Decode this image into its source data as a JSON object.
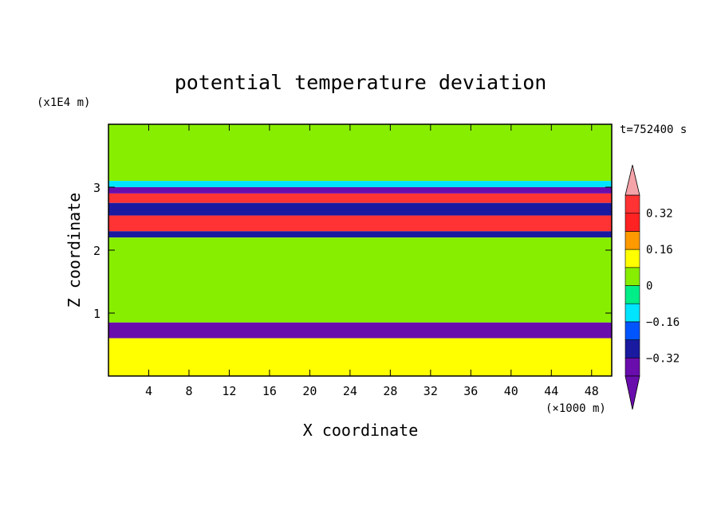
{
  "chart_data": {
    "type": "heatmap",
    "title": "potential temperature deviation",
    "xlabel": "X coordinate",
    "ylabel": "Z coordinate",
    "x_unit": "(×1000 m)",
    "y_unit": "(x1E4 m)",
    "time_label": "t=752400 s",
    "xlim": [
      0,
      50
    ],
    "ylim": [
      0,
      4
    ],
    "x_ticks": [
      "4",
      "8",
      "12",
      "16",
      "20",
      "24",
      "28",
      "32",
      "36",
      "40",
      "44",
      "48"
    ],
    "x_tick_values": [
      4,
      8,
      12,
      16,
      20,
      24,
      28,
      32,
      36,
      40,
      44,
      48
    ],
    "y_ticks": [
      "1",
      "2",
      "3"
    ],
    "y_tick_values": [
      1,
      2,
      3
    ],
    "colorbar": {
      "levels": [
        -0.4,
        -0.32,
        -0.24,
        -0.16,
        -0.08,
        0,
        0.08,
        0.16,
        0.24,
        0.32,
        0.4
      ],
      "labels": [
        "0.32",
        "0.16",
        "0",
        "−0.16",
        "−0.32"
      ],
      "label_values": [
        0.32,
        0.16,
        0,
        -0.16,
        -0.32
      ],
      "colors": [
        "#6a0dad",
        "#1a1aa0",
        "#0055ff",
        "#00e5ff",
        "#00ee88",
        "#88ee00",
        "#ffff00",
        "#ff9900",
        "#ff2222",
        "#ff3333",
        "#f4a3a8"
      ],
      "extend_low_color": "#6a0dad",
      "extend_high_color": "#f4a3a8"
    },
    "bands": [
      {
        "z": [
          3.1,
          4.0
        ],
        "value": 0.05
      },
      {
        "z": [
          3.0,
          3.1
        ],
        "value": -0.12
      },
      {
        "z": [
          2.9,
          3.0
        ],
        "value": -0.36
      },
      {
        "z": [
          2.75,
          2.9
        ],
        "value": 0.34
      },
      {
        "z": [
          2.55,
          2.75
        ],
        "value": -0.3
      },
      {
        "z": [
          2.3,
          2.55
        ],
        "value": 0.38
      },
      {
        "z": [
          2.2,
          2.3
        ],
        "value": -0.3
      },
      {
        "z": [
          0.85,
          2.2
        ],
        "value": 0.0
      },
      {
        "z": [
          0.6,
          0.85
        ],
        "value": -0.4
      },
      {
        "z": [
          0.0,
          0.6
        ],
        "value": 0.1
      }
    ]
  }
}
